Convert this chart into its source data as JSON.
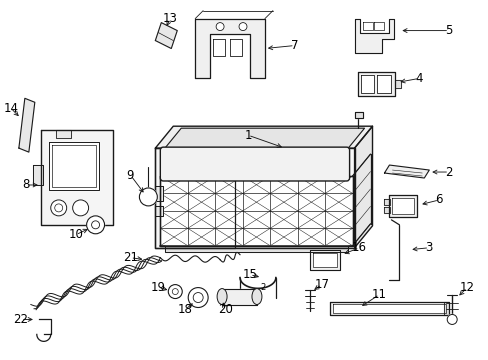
{
  "bg_color": "#ffffff",
  "line_color": "#1a1a1a",
  "text_color": "#000000",
  "fig_width": 4.89,
  "fig_height": 3.6,
  "dpi": 100,
  "font_size": 8.5
}
